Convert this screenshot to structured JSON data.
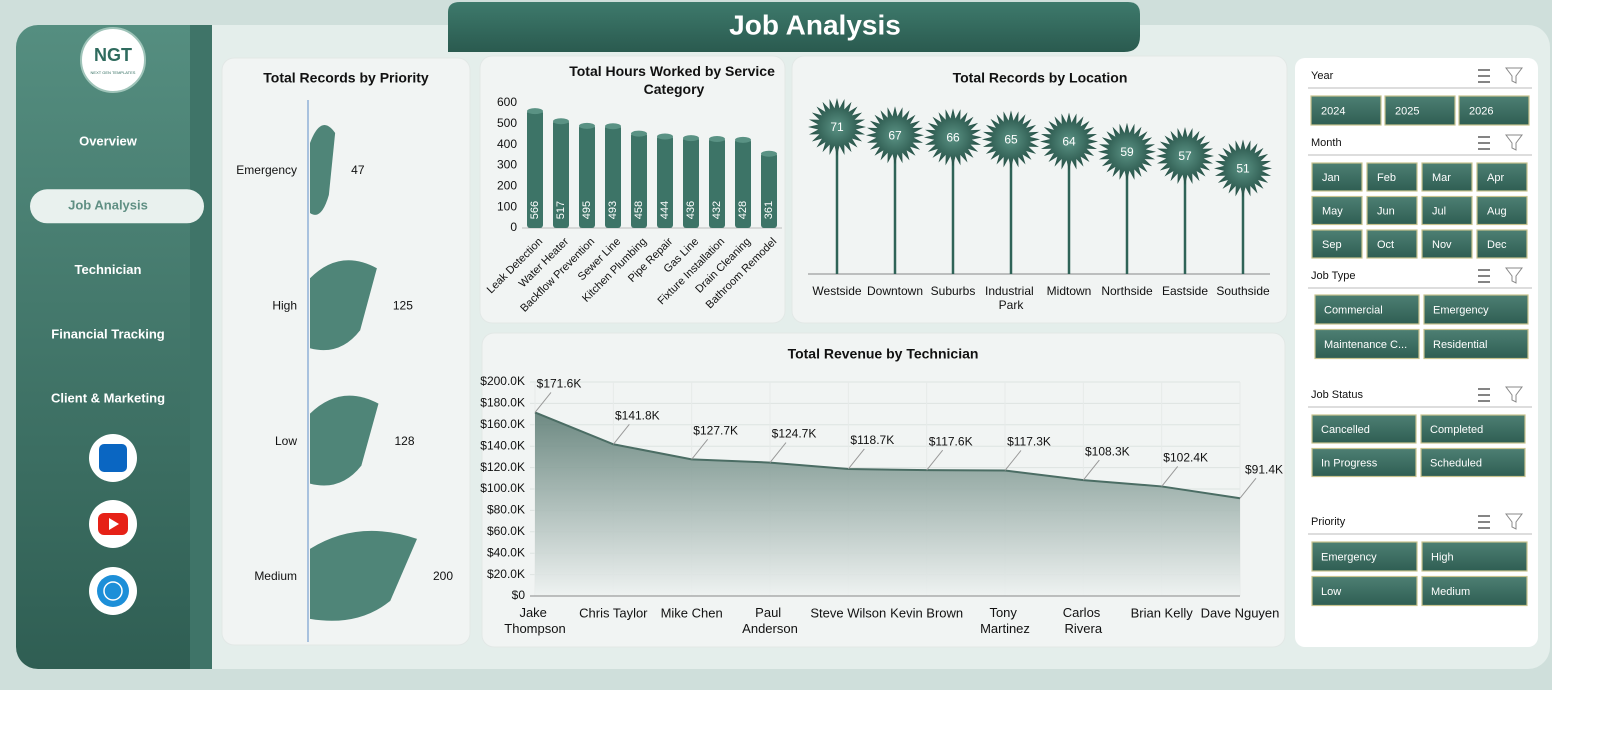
{
  "page_title": "Job Analysis",
  "sidebar": {
    "logo": "NGT",
    "logo_subtitle": "NEXT GEN TEMPLATES",
    "nav": [
      "Overview",
      "Job Analysis",
      "Technician",
      "Financial Tracking",
      "Client & Marketing"
    ],
    "active": 1
  },
  "chart_data": [
    {
      "type": "bar",
      "horizontal": true,
      "title": "Total Records by Priority",
      "color": "#4f8578",
      "categories": [
        "Emergency",
        "High",
        "Low",
        "Medium"
      ],
      "values": [
        47,
        125,
        128,
        200
      ]
    },
    {
      "type": "bar",
      "title": "Total Hours Worked by Service Category",
      "color": "#3d7467",
      "categories": [
        "Leak Detection",
        "Water Heater",
        "Backflow Prevention",
        "Sewer Line",
        "Kitchen Plumbing",
        "Pipe Repair",
        "Gas Line",
        "Fixture Installation",
        "Drain Cleaning",
        "Bathroom Remodel"
      ],
      "values": [
        566,
        517,
        495,
        493,
        458,
        444,
        436,
        432,
        428,
        361
      ],
      "ylim": [
        0,
        600
      ],
      "yticks": [
        0,
        100,
        200,
        300,
        400,
        500,
        600
      ]
    },
    {
      "type": "lollipop",
      "title": "Total Records by Location",
      "color": "#2f6357",
      "categories": [
        "Westside",
        "Downtown",
        "Suburbs",
        "Industrial Park",
        "Midtown",
        "Northside",
        "Eastside",
        "Southside"
      ],
      "values": [
        71,
        67,
        66,
        65,
        64,
        59,
        57,
        51
      ]
    },
    {
      "type": "area",
      "title": "Total Revenue by Technician",
      "color": "#4b6d64",
      "grid": true,
      "categories": [
        "Jake Thompson",
        "Chris Taylor",
        "Mike Chen",
        "Paul Anderson",
        "Steve Wilson",
        "Kevin Brown",
        "Tony Martinez",
        "Carlos Rivera",
        "Brian Kelly",
        "Dave Nguyen"
      ],
      "values": [
        171600,
        141800,
        127700,
        124700,
        118700,
        117600,
        117300,
        108300,
        102400,
        91400
      ],
      "value_labels": [
        "$171.6K",
        "$141.8K",
        "$127.7K",
        "$124.7K",
        "$118.7K",
        "$117.6K",
        "$117.3K",
        "$108.3K",
        "$102.4K",
        "$91.4K"
      ],
      "ylim": [
        0,
        200000
      ],
      "yticks": [
        {
          "value": 0,
          "label": "$0"
        },
        {
          "value": 20000,
          "label": "$20.0K"
        },
        {
          "value": 40000,
          "label": "$40.0K"
        },
        {
          "value": 60000,
          "label": "$60.0K"
        },
        {
          "value": 80000,
          "label": "$80.0K"
        },
        {
          "value": 100000,
          "label": "$100.0K"
        },
        {
          "value": 120000,
          "label": "$120.0K"
        },
        {
          "value": 140000,
          "label": "$140.0K"
        },
        {
          "value": 160000,
          "label": "$160.0K"
        },
        {
          "value": 180000,
          "label": "$180.0K"
        },
        {
          "value": 200000,
          "label": "$200.0K"
        }
      ]
    }
  ],
  "slicers": [
    {
      "title": "Year",
      "items": [
        "2024",
        "2025",
        "2026"
      ]
    },
    {
      "title": "Month",
      "items": [
        "Jan",
        "Feb",
        "Mar",
        "Apr",
        "May",
        "Jun",
        "Jul",
        "Aug",
        "Sep",
        "Oct",
        "Nov",
        "Dec"
      ]
    },
    {
      "title": "Job Type",
      "items": [
        "Commercial",
        "Emergency",
        "Maintenance C...",
        "Residential"
      ]
    },
    {
      "title": "Job Status",
      "items": [
        "Cancelled",
        "Completed",
        "In Progress",
        "Scheduled"
      ]
    },
    {
      "title": "Priority",
      "items": [
        "Emergency",
        "High",
        "Low",
        "Medium"
      ]
    }
  ]
}
